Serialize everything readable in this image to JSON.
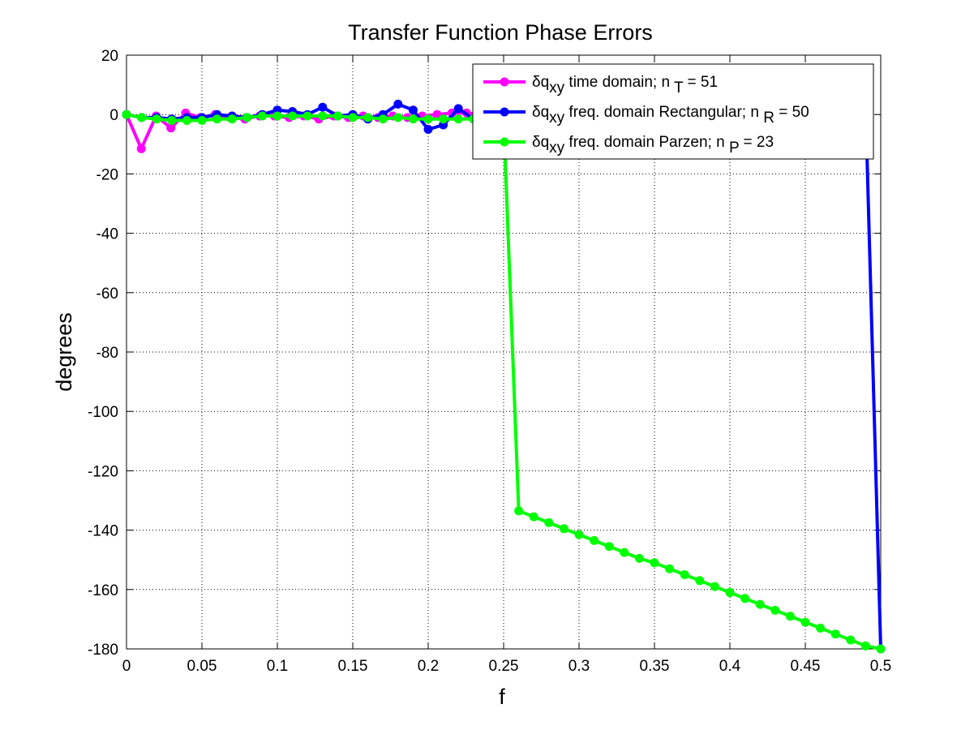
{
  "chart_data": {
    "type": "line",
    "title": "Transfer Function Phase Errors",
    "xlabel": "f",
    "ylabel": "degrees",
    "xlim": [
      0,
      0.5
    ],
    "ylim": [
      -180,
      20
    ],
    "xticks": [
      0,
      0.05,
      0.1,
      0.15,
      0.2,
      0.25,
      0.3,
      0.35,
      0.4,
      0.45,
      0.5
    ],
    "xtick_labels": [
      "0",
      "0.05",
      "0.1",
      "0.15",
      "0.2",
      "0.25",
      "0.3",
      "0.35",
      "0.4",
      "0.45",
      "0.5"
    ],
    "yticks": [
      20,
      0,
      -20,
      -40,
      -60,
      -80,
      -100,
      -120,
      -140,
      -160,
      -180
    ],
    "ytick_labels": [
      "20",
      "0",
      "-20",
      "-40",
      "-60",
      "-80",
      "-100",
      "-120",
      "-140",
      "-160",
      "-180"
    ],
    "grid": true,
    "legend_position": "top-right",
    "series": [
      {
        "name": "δq_xy time domain; n_T = 51",
        "legend": {
          "pre": "δq",
          "sub1": "xy",
          "mid": " time domain; n ",
          "sub2": "T",
          "post": " = 51"
        },
        "color": "#ff00ff",
        "x": [
          0,
          0.0098,
          0.0196,
          0.0294,
          0.0392,
          0.049,
          0.0588,
          0.0686,
          0.0784,
          0.0882,
          0.098,
          0.1078,
          0.1176,
          0.1275,
          0.1373,
          0.1471,
          0.1569,
          0.1667,
          0.1765,
          0.1863,
          0.1961,
          0.2059,
          0.2157,
          0.2255,
          0.2353,
          0.2451,
          0.2549,
          0.2647,
          0.2745,
          0.2843,
          0.2941,
          0.3039,
          0.3137,
          0.3235,
          0.3333,
          0.3431,
          0.3529,
          0.3627,
          0.3725,
          0.3824,
          0.3922,
          0.402,
          0.4118,
          0.4216,
          0.4314,
          0.4412,
          0.451,
          0.4608,
          0.4706,
          0.4804,
          0.4902
        ],
        "y": [
          0,
          -11.5,
          -0.5,
          -4.5,
          0.5,
          -1,
          0,
          -1,
          -1.5,
          -0.5,
          -0.5,
          -1,
          -0.5,
          -1.5,
          -0.5,
          -1,
          -0.5,
          -1,
          -0.5,
          -1,
          -0.5,
          0,
          0.5,
          0.5,
          0,
          -0.5,
          -1.5,
          -1,
          -0.5,
          0,
          0,
          0,
          -1,
          -1.5,
          -0.5,
          -0.5,
          -0.5,
          -1,
          0.5,
          0,
          0.5,
          1.5,
          2,
          3,
          2.5,
          -1,
          -1,
          -1.5,
          -2,
          -3.5,
          -4
        ]
      },
      {
        "name": "δq_xy freq. domain Rectangular; n_R = 50",
        "legend": {
          "pre": "δq",
          "sub1": "xy",
          "mid": " freq. domain Rectangular; n ",
          "sub2": "R",
          "post": " = 50"
        },
        "color": "#0000ff",
        "x": [
          0,
          0.01,
          0.02,
          0.03,
          0.04,
          0.05,
          0.06,
          0.07,
          0.08,
          0.09,
          0.1,
          0.11,
          0.12,
          0.13,
          0.14,
          0.15,
          0.16,
          0.17,
          0.18,
          0.19,
          0.2,
          0.21,
          0.22,
          0.23,
          0.24,
          0.25,
          0.26,
          0.27,
          0.28,
          0.29,
          0.3,
          0.31,
          0.32,
          0.33,
          0.34,
          0.35,
          0.36,
          0.37,
          0.38,
          0.39,
          0.4,
          0.41,
          0.42,
          0.43,
          0.44,
          0.45,
          0.46,
          0.47,
          0.48,
          0.49,
          0.5
        ],
        "y": [
          0,
          -1,
          -1,
          -1.5,
          -1,
          -1,
          0,
          -0.5,
          -1,
          0,
          1.5,
          1,
          0,
          2.5,
          -0.5,
          0,
          -1.5,
          0,
          3.5,
          1.5,
          -5,
          -3.5,
          2,
          -1.5,
          -2.5,
          1.5,
          0.5,
          -1.5,
          -1,
          -0.5,
          3.5,
          2.5,
          -1,
          3,
          -0.5,
          0.5,
          1,
          4.5,
          0.5,
          -0.5,
          1,
          -0.5,
          0.5,
          -4.5,
          0,
          -5.5,
          -1,
          4.5,
          -1.5,
          2.5,
          -180
        ]
      },
      {
        "name": "δq_xy freq. domain Parzen; n_P = 23",
        "legend": {
          "pre": "δq",
          "sub1": "xy",
          "mid": " freq. domain Parzen; n ",
          "sub2": "P",
          "post": " = 23"
        },
        "color": "#00ff00",
        "x": [
          0,
          0.01,
          0.02,
          0.03,
          0.04,
          0.05,
          0.06,
          0.07,
          0.08,
          0.09,
          0.1,
          0.11,
          0.12,
          0.13,
          0.14,
          0.15,
          0.16,
          0.17,
          0.18,
          0.19,
          0.2,
          0.21,
          0.22,
          0.23,
          0.24,
          0.25,
          0.26,
          0.27,
          0.28,
          0.29,
          0.3,
          0.31,
          0.32,
          0.33,
          0.34,
          0.35,
          0.36,
          0.37,
          0.38,
          0.39,
          0.4,
          0.41,
          0.42,
          0.43,
          0.44,
          0.45,
          0.46,
          0.47,
          0.48,
          0.49,
          0.5
        ],
        "y": [
          0,
          -1,
          -1.5,
          -2,
          -2,
          -2,
          -1.5,
          -1.5,
          -1,
          -0.5,
          -0.5,
          -0.5,
          -0.5,
          -0.5,
          -0.5,
          -1,
          -1,
          -1.5,
          -1,
          -1.5,
          -1.5,
          -1.5,
          -1.5,
          -1.5,
          -1.5,
          -1,
          -133.5,
          -135.5,
          -137.5,
          -139.5,
          -141.5,
          -143.5,
          -145.5,
          -147.5,
          -149.5,
          -151,
          -153,
          -155,
          -157,
          -159,
          -161,
          -163,
          -165,
          -167,
          -169,
          -171,
          -173,
          -175,
          -177,
          -179,
          -180
        ]
      }
    ]
  }
}
